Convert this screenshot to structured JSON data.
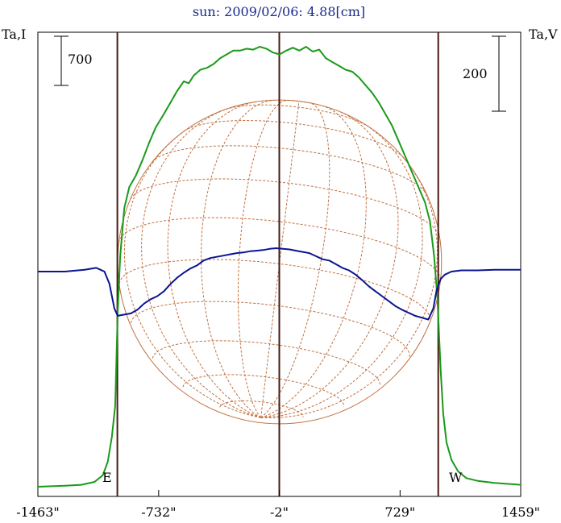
{
  "chart_data": {
    "type": "line",
    "title": "sun: 2009/02/06: 4.88[cm]",
    "left_axis_label": "Ta,I",
    "right_axis_label": "Ta,V",
    "left_scale_bar": "700",
    "right_scale_bar": "200",
    "x_tick_labels": [
      "-1463\"",
      "-732\"",
      "-2\"",
      "729\"",
      "1459\""
    ],
    "x_ticks": [
      -1463,
      -732,
      -2,
      729,
      1459
    ],
    "xlim": [
      -1463,
      1459
    ],
    "limb_markers": [
      {
        "label": "E",
        "x": -982
      },
      {
        "label": "W",
        "x": 960
      }
    ],
    "center_marker": -2,
    "grid": false,
    "series": [
      {
        "name": "I",
        "color": "#1a9a1a",
        "y_offset_units": "relative",
        "points": [
          [
            -1463,
            0
          ],
          [
            -1300,
            5
          ],
          [
            -1200,
            10
          ],
          [
            -1120,
            25
          ],
          [
            -1070,
            60
          ],
          [
            -1040,
            130
          ],
          [
            -1015,
            260
          ],
          [
            -995,
            420
          ],
          [
            -980,
            900
          ],
          [
            -965,
            1200
          ],
          [
            -940,
            1450
          ],
          [
            -910,
            1560
          ],
          [
            -870,
            1620
          ],
          [
            -830,
            1700
          ],
          [
            -790,
            1790
          ],
          [
            -750,
            1870
          ],
          [
            -700,
            1940
          ],
          [
            -660,
            2000
          ],
          [
            -620,
            2060
          ],
          [
            -580,
            2110
          ],
          [
            -550,
            2100
          ],
          [
            -520,
            2140
          ],
          [
            -480,
            2170
          ],
          [
            -440,
            2180
          ],
          [
            -400,
            2200
          ],
          [
            -360,
            2230
          ],
          [
            -320,
            2250
          ],
          [
            -280,
            2270
          ],
          [
            -240,
            2270
          ],
          [
            -200,
            2280
          ],
          [
            -160,
            2275
          ],
          [
            -120,
            2290
          ],
          [
            -80,
            2280
          ],
          [
            -40,
            2260
          ],
          [
            0,
            2250
          ],
          [
            40,
            2270
          ],
          [
            80,
            2285
          ],
          [
            120,
            2270
          ],
          [
            160,
            2290
          ],
          [
            200,
            2265
          ],
          [
            240,
            2275
          ],
          [
            280,
            2230
          ],
          [
            320,
            2210
          ],
          [
            360,
            2190
          ],
          [
            400,
            2170
          ],
          [
            440,
            2160
          ],
          [
            480,
            2130
          ],
          [
            520,
            2090
          ],
          [
            560,
            2050
          ],
          [
            600,
            2000
          ],
          [
            640,
            1940
          ],
          [
            680,
            1880
          ],
          [
            720,
            1800
          ],
          [
            760,
            1720
          ],
          [
            800,
            1640
          ],
          [
            840,
            1560
          ],
          [
            880,
            1480
          ],
          [
            910,
            1380
          ],
          [
            935,
            1200
          ],
          [
            955,
            980
          ],
          [
            975,
            600
          ],
          [
            990,
            380
          ],
          [
            1010,
            230
          ],
          [
            1040,
            140
          ],
          [
            1080,
            80
          ],
          [
            1130,
            45
          ],
          [
            1200,
            30
          ],
          [
            1300,
            20
          ],
          [
            1459,
            10
          ]
        ]
      },
      {
        "name": "V",
        "color": "#0a1490",
        "y_offset_units": "relative",
        "points": [
          [
            -1463,
            0
          ],
          [
            -1300,
            0
          ],
          [
            -1180,
            3
          ],
          [
            -1110,
            6
          ],
          [
            -1060,
            0
          ],
          [
            -1030,
            -20
          ],
          [
            -1000,
            -60
          ],
          [
            -980,
            -72
          ],
          [
            -940,
            -70
          ],
          [
            -900,
            -68
          ],
          [
            -860,
            -62
          ],
          [
            -820,
            -52
          ],
          [
            -780,
            -45
          ],
          [
            -740,
            -40
          ],
          [
            -700,
            -32
          ],
          [
            -660,
            -20
          ],
          [
            -620,
            -10
          ],
          [
            -580,
            -2
          ],
          [
            -540,
            5
          ],
          [
            -500,
            10
          ],
          [
            -460,
            18
          ],
          [
            -420,
            22
          ],
          [
            -380,
            24
          ],
          [
            -340,
            26
          ],
          [
            -300,
            28
          ],
          [
            -260,
            30
          ],
          [
            -220,
            31
          ],
          [
            -180,
            33
          ],
          [
            -140,
            34
          ],
          [
            -100,
            35
          ],
          [
            -60,
            37
          ],
          [
            -20,
            38
          ],
          [
            20,
            37
          ],
          [
            60,
            36
          ],
          [
            100,
            34
          ],
          [
            140,
            32
          ],
          [
            180,
            30
          ],
          [
            220,
            25
          ],
          [
            260,
            20
          ],
          [
            300,
            18
          ],
          [
            340,
            12
          ],
          [
            380,
            6
          ],
          [
            420,
            2
          ],
          [
            460,
            -5
          ],
          [
            500,
            -14
          ],
          [
            540,
            -24
          ],
          [
            580,
            -32
          ],
          [
            620,
            -40
          ],
          [
            660,
            -48
          ],
          [
            700,
            -56
          ],
          [
            740,
            -62
          ],
          [
            780,
            -67
          ],
          [
            820,
            -72
          ],
          [
            860,
            -75
          ],
          [
            900,
            -78
          ],
          [
            930,
            -60
          ],
          [
            950,
            -30
          ],
          [
            975,
            -12
          ],
          [
            1000,
            -5
          ],
          [
            1040,
            0
          ],
          [
            1100,
            2
          ],
          [
            1200,
            2
          ],
          [
            1300,
            3
          ],
          [
            1459,
            3
          ]
        ]
      }
    ],
    "disk": {
      "center_x": 0,
      "radius_arcsec": 980,
      "grid": "heliographic"
    },
    "axis_color": "#000000",
    "marker_line_color": "#4a1a10",
    "disk_color": "#c07040"
  }
}
